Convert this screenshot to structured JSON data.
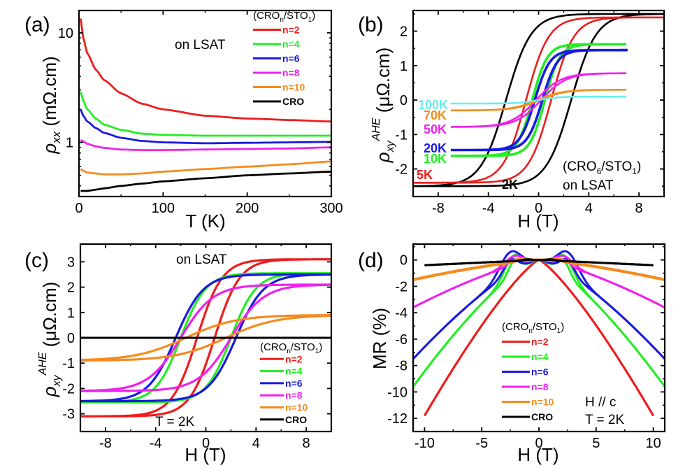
{
  "figure": {
    "colors": {
      "n2": "#ee1c1c",
      "n4": "#22ee22",
      "n6": "#1a1ae0",
      "n8": "#ee22ee",
      "n10": "#f58b1e",
      "cro": "#000000",
      "k100": "#66eeee",
      "k70": "#f58b1e",
      "k50": "#ee22ee",
      "k20": "#1a1ae0",
      "k10": "#22ee22",
      "k5": "#ee1c1c",
      "k2": "#000000"
    }
  },
  "chart_data": [
    {
      "panel": "(a)",
      "type": "line",
      "title": "",
      "xlabel": "T (K)",
      "ylabel": "ρ_xx (mΩ.cm)",
      "yscale": "log",
      "xlim": [
        0,
        300
      ],
      "ylim": [
        0.32,
        16
      ],
      "xticks": [
        "0",
        "100",
        "200",
        "300"
      ],
      "yticks": [
        "1",
        "10"
      ],
      "annotation": "on LSAT",
      "legend_title": "(CRO_n/STO_1)",
      "legend_position": "top-right",
      "x": [
        2,
        5,
        10,
        20,
        30,
        50,
        75,
        100,
        150,
        200,
        250,
        300
      ],
      "series": [
        {
          "name": "n=2",
          "color_key": "n2",
          "values": [
            13.5,
            9.0,
            6.5,
            4.6,
            3.7,
            2.8,
            2.25,
            2.0,
            1.75,
            1.65,
            1.6,
            1.55
          ]
        },
        {
          "name": "n=4",
          "color_key": "n4",
          "values": [
            2.9,
            2.4,
            2.0,
            1.65,
            1.45,
            1.3,
            1.2,
            1.17,
            1.15,
            1.15,
            1.15,
            1.15
          ]
        },
        {
          "name": "n=6",
          "color_key": "n6",
          "values": [
            2.0,
            1.75,
            1.55,
            1.35,
            1.22,
            1.1,
            1.03,
            1.0,
            0.98,
            0.99,
            1.0,
            1.01
          ]
        },
        {
          "name": "n=8",
          "color_key": "n8",
          "values": [
            1.05,
            1.02,
            0.97,
            0.92,
            0.89,
            0.86,
            0.85,
            0.85,
            0.86,
            0.87,
            0.88,
            0.9
          ]
        },
        {
          "name": "n=10",
          "color_key": "n10",
          "values": [
            0.57,
            0.55,
            0.53,
            0.52,
            0.51,
            0.51,
            0.52,
            0.54,
            0.57,
            0.6,
            0.63,
            0.67
          ]
        },
        {
          "name": "CRO",
          "color_key": "cro",
          "values": [
            0.36,
            0.36,
            0.36,
            0.37,
            0.38,
            0.4,
            0.42,
            0.44,
            0.47,
            0.5,
            0.52,
            0.54
          ]
        }
      ]
    },
    {
      "panel": "(b)",
      "type": "line",
      "xlabel": "H (T)",
      "ylabel": "ρ_xy^AHE (μΩ.cm)",
      "xlim": [
        -10,
        10
      ],
      "ylim": [
        -2.8,
        2.6
      ],
      "xticks": [
        "-8",
        "-4",
        "0",
        "4",
        "8"
      ],
      "yticks": [
        "-2",
        "-1",
        "0",
        "1",
        "2"
      ],
      "annotation": [
        "(CRO6/STO1)",
        "on LSAT"
      ],
      "loops": [
        {
          "name": "100K",
          "color_key": "k100",
          "hmax": 7,
          "saturation": 0.1,
          "coercive": 0.0,
          "width": 1.5
        },
        {
          "name": "70K",
          "color_key": "k70",
          "hmax": 7,
          "saturation": 0.3,
          "coercive": 0.1,
          "width": 2.0
        },
        {
          "name": "50K",
          "color_key": "k50",
          "hmax": 7,
          "saturation": 0.78,
          "coercive": 0.2,
          "width": 2.0
        },
        {
          "name": "20K",
          "color_key": "k20",
          "hmax": 7,
          "saturation": 1.45,
          "coercive": 0.3,
          "width": 1.2
        },
        {
          "name": "10K",
          "color_key": "k10",
          "hmax": 7,
          "saturation": 1.62,
          "coercive": 0.5,
          "width": 1.2
        },
        {
          "name": "5K",
          "color_key": "k5",
          "hmax": 10,
          "saturation": 2.4,
          "coercive": 1.0,
          "width": 1.8
        },
        {
          "name": "2K",
          "color_key": "k2",
          "hmax": 10,
          "saturation": 2.5,
          "coercive": 2.6,
          "width": 2.0
        }
      ]
    },
    {
      "panel": "(c)",
      "type": "line",
      "xlabel": "H (T)",
      "ylabel": "ρ_xy^AHE (μΩ.cm)",
      "xlim": [
        -10,
        10
      ],
      "ylim": [
        -3.7,
        3.7
      ],
      "xticks": [
        "-8",
        "-4",
        "0",
        "4",
        "8"
      ],
      "yticks": [
        "-3",
        "-2",
        "-1",
        "0",
        "1",
        "2",
        "3"
      ],
      "annotation": [
        "on LSAT",
        "T = 2K"
      ],
      "legend_title": "(CRO_n/STO_1)",
      "legend_position": "bottom-right",
      "loops": [
        {
          "name": "n=2",
          "color_key": "n2",
          "saturation": 3.1,
          "coercive": 0.7,
          "width": 2.0
        },
        {
          "name": "n=4",
          "color_key": "n4",
          "saturation": 2.55,
          "coercive": 2.0,
          "width": 2.0
        },
        {
          "name": "n=6",
          "color_key": "n6",
          "saturation": 2.5,
          "coercive": 2.4,
          "width": 2.2
        },
        {
          "name": "n=8",
          "color_key": "n8",
          "saturation": 2.1,
          "coercive": 2.0,
          "width": 2.6
        },
        {
          "name": "n=10",
          "color_key": "n10",
          "saturation": 0.9,
          "coercive": 1.6,
          "width": 4.0
        },
        {
          "name": "CRO",
          "color_key": "cro",
          "saturation": 0.0,
          "coercive": 0.0,
          "width": 1.0
        }
      ]
    },
    {
      "panel": "(d)",
      "type": "line",
      "xlabel": "H (T)",
      "ylabel": "MR (%)",
      "xlim": [
        -11,
        11
      ],
      "ylim": [
        -13,
        1.2
      ],
      "xticks": [
        "-10",
        "-5",
        "0",
        "5",
        "10"
      ],
      "yticks": [
        "-12",
        "-10",
        "-8",
        "-6",
        "-4",
        "-2",
        "0"
      ],
      "annotation": [
        "H // c",
        "T = 2K"
      ],
      "legend_title": "(CRO_n/STO_1)",
      "legend_position": "bottom-center",
      "series": [
        {
          "name": "n=2",
          "color_key": "n2",
          "hmax": 10,
          "mr_at_max": -11.8,
          "peak": 0.0,
          "peak_h": 0
        },
        {
          "name": "n=4",
          "color_key": "n4",
          "hmax": 11,
          "mr_at_max": -9.6,
          "peak": 0.5,
          "peak_h": 2.0
        },
        {
          "name": "n=6",
          "color_key": "n6",
          "hmax": 11,
          "mr_at_max": -7.5,
          "peak": 0.75,
          "peak_h": 2.3
        },
        {
          "name": "n=8",
          "color_key": "n8",
          "hmax": 11,
          "mr_at_max": -3.6,
          "peak": 0.35,
          "peak_h": 2.0
        },
        {
          "name": "n=10",
          "color_key": "n10",
          "hmax": 11,
          "mr_at_max": -1.5,
          "peak": 0.1,
          "peak_h": 1.5
        },
        {
          "name": "CRO",
          "color_key": "cro",
          "hmax": 10,
          "mr_at_max": -0.4,
          "peak": 0.05,
          "peak_h": 1.0
        }
      ]
    }
  ],
  "labels": {
    "a": "(a)",
    "b": "(b)",
    "c": "(c)",
    "d": "(d)",
    "on_lsat": "on LSAT",
    "b_ann1": "(CRO",
    "b_ann2": "on LSAT",
    "t2k": "T = 2K",
    "hc": "H // c",
    "k2": "2K"
  }
}
